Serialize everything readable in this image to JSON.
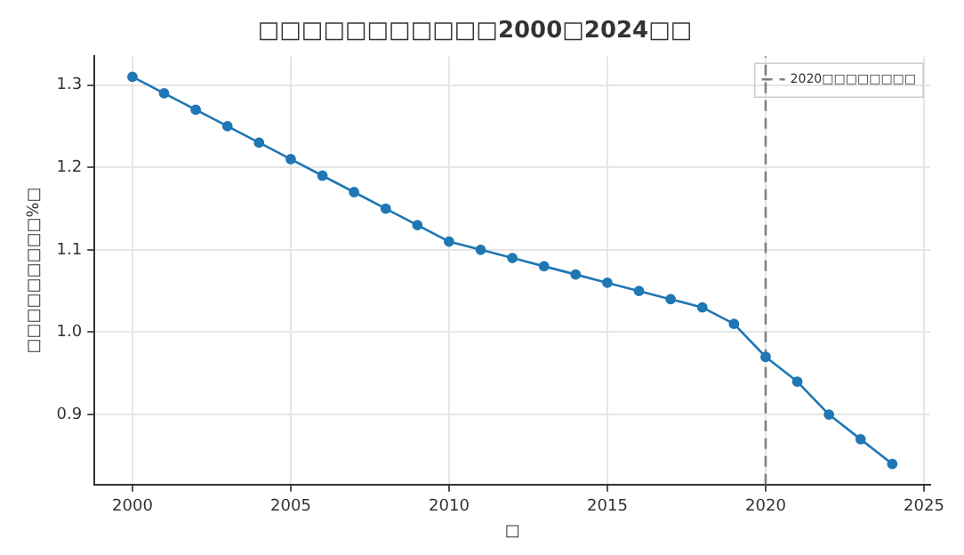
{
  "chart_data": {
    "type": "line",
    "title": "□□□□□□□□□□□2000□2024□□",
    "xlabel": "□",
    "ylabel": "□□□□□□□□□%□",
    "x": [
      2000,
      2001,
      2002,
      2003,
      2004,
      2005,
      2006,
      2007,
      2008,
      2009,
      2010,
      2011,
      2012,
      2013,
      2014,
      2015,
      2016,
      2017,
      2018,
      2019,
      2020,
      2021,
      2022,
      2023,
      2024
    ],
    "series": [
      {
        "color": "#1f77b4",
        "values": [
          1.31,
          1.29,
          1.27,
          1.25,
          1.23,
          1.21,
          1.19,
          1.17,
          1.15,
          1.13,
          1.11,
          1.1,
          1.09,
          1.08,
          1.07,
          1.06,
          1.05,
          1.04,
          1.03,
          1.01,
          0.97,
          0.94,
          0.9,
          0.87,
          0.84
        ]
      }
    ],
    "xlim": [
      1998.8,
      2025.2
    ],
    "xticks": [
      2000,
      2005,
      2010,
      2015,
      2020,
      2025
    ],
    "ylim": [
      0.815,
      1.335
    ],
    "yticks": [
      0.9,
      {
        "value": 1.0,
        "label": "1.0"
      },
      1.1,
      1.2,
      1.3
    ],
    "ref_lines": [
      {
        "axis": "x",
        "value": 2020,
        "label": "2020□□□□□□□□",
        "color": "#808080",
        "line_style": "dashed"
      }
    ],
    "grid": true,
    "legend": "top right",
    "marker": "circle",
    "line_style": "solid"
  }
}
